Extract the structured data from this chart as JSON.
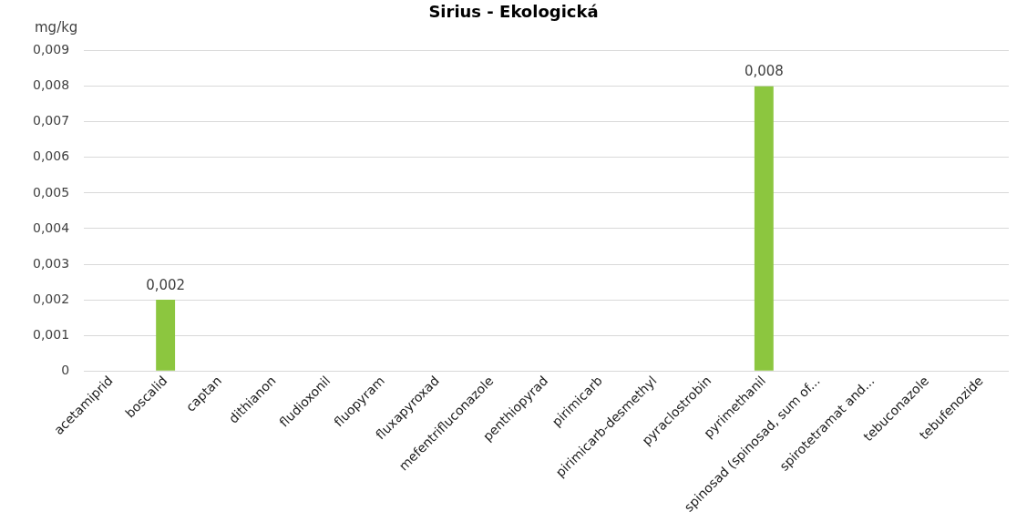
{
  "chart_data": {
    "type": "bar",
    "title": "Sirius - Ekologická",
    "ylabel": "mg/kg",
    "categories": [
      "acetamiprid",
      "boscalid",
      "captan",
      "dithianon",
      "fludioxonil",
      "fluopyram",
      "fluxapyroxad",
      "mefentrifluconazole",
      "penthiopyrad",
      "pirimicarb",
      "pirimicarb-desmethyl",
      "pyraclostrobin",
      "pyrimethanil",
      "spinosad (spinosad, sum of...",
      "spirotetramat and...",
      "tebuconazole",
      "tebufenozide"
    ],
    "values": [
      0,
      0.002,
      0,
      0,
      0,
      0,
      0,
      0,
      0,
      0,
      0,
      0,
      0.008,
      0,
      0,
      0,
      0
    ],
    "value_labels": [
      null,
      "0,002",
      null,
      null,
      null,
      null,
      null,
      null,
      null,
      null,
      null,
      null,
      "0,008",
      null,
      null,
      null,
      null
    ],
    "color": "#8cc63f",
    "ylim": [
      0,
      0.009
    ],
    "yticks": [
      {
        "value": 0,
        "label": "0"
      },
      {
        "value": 0.001,
        "label": "0,001"
      },
      {
        "value": 0.002,
        "label": "0,002"
      },
      {
        "value": 0.003,
        "label": "0,003"
      },
      {
        "value": 0.004,
        "label": "0,004"
      },
      {
        "value": 0.005,
        "label": "0,005"
      },
      {
        "value": 0.006,
        "label": "0,006"
      },
      {
        "value": 0.007,
        "label": "0,007"
      },
      {
        "value": 0.008,
        "label": "0,008"
      },
      {
        "value": 0.009,
        "label": "0,009"
      }
    ],
    "grid": "y",
    "legend": false
  }
}
